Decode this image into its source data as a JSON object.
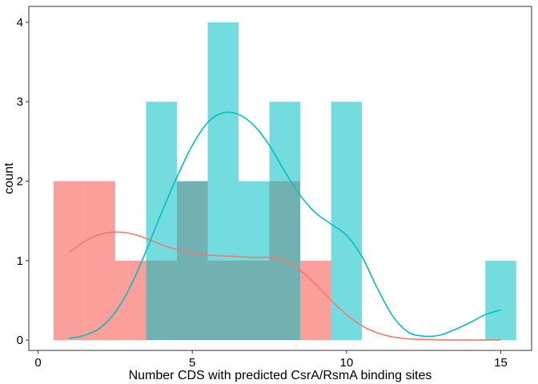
{
  "chart_data": {
    "type": "histogram",
    "xlabel": "Number CDS with predicted CsrA/RsmA binding sites",
    "ylabel": "count",
    "xlim": [
      -0.3,
      16.0
    ],
    "ylim": [
      -0.13,
      4.2
    ],
    "x_ticks": [
      0,
      5,
      10,
      15
    ],
    "y_ticks": [
      0,
      1,
      2,
      3,
      4
    ],
    "bin_width": 1,
    "grid": false,
    "legend": "none",
    "series": [
      {
        "color": "#F8766D",
        "fill_opacity": 0.7,
        "bins": [
          {
            "x": 1,
            "count": 2
          },
          {
            "x": 2,
            "count": 2
          },
          {
            "x": 3,
            "count": 1
          },
          {
            "x": 4,
            "count": 1
          },
          {
            "x": 5,
            "count": 2
          },
          {
            "x": 6,
            "count": 1
          },
          {
            "x": 7,
            "count": 1
          },
          {
            "x": 8,
            "count": 2
          },
          {
            "x": 9,
            "count": 1
          },
          {
            "x": 10,
            "count": 0
          },
          {
            "x": 11,
            "count": 0
          },
          {
            "x": 12,
            "count": 0
          },
          {
            "x": 13,
            "count": 0
          },
          {
            "x": 14,
            "count": 0
          },
          {
            "x": 15,
            "count": 0
          }
        ],
        "density_curve": [
          [
            1.0,
            1.1
          ],
          [
            1.5,
            1.24
          ],
          [
            2.0,
            1.33
          ],
          [
            2.5,
            1.36
          ],
          [
            3.0,
            1.34
          ],
          [
            3.5,
            1.28
          ],
          [
            4.0,
            1.2
          ],
          [
            4.5,
            1.14
          ],
          [
            5.0,
            1.1
          ],
          [
            5.5,
            1.07
          ],
          [
            6.0,
            1.06
          ],
          [
            6.5,
            1.05
          ],
          [
            7.0,
            1.04
          ],
          [
            7.5,
            1.04
          ],
          [
            8.0,
            1.0
          ],
          [
            8.5,
            0.88
          ],
          [
            9.0,
            0.7
          ],
          [
            9.5,
            0.5
          ],
          [
            10.0,
            0.32
          ],
          [
            10.5,
            0.18
          ],
          [
            11.0,
            0.09
          ],
          [
            11.5,
            0.04
          ],
          [
            12.0,
            0.015
          ],
          [
            13.0,
            0.003
          ],
          [
            14.0,
            0.0
          ],
          [
            15.0,
            0.0
          ]
        ]
      },
      {
        "color": "#00BFC4",
        "fill_opacity": 0.55,
        "bins": [
          {
            "x": 1,
            "count": 0
          },
          {
            "x": 2,
            "count": 0
          },
          {
            "x": 3,
            "count": 0
          },
          {
            "x": 4,
            "count": 3
          },
          {
            "x": 5,
            "count": 2
          },
          {
            "x": 6,
            "count": 4
          },
          {
            "x": 7,
            "count": 2
          },
          {
            "x": 8,
            "count": 3
          },
          {
            "x": 9,
            "count": 0
          },
          {
            "x": 10,
            "count": 3
          },
          {
            "x": 11,
            "count": 0
          },
          {
            "x": 12,
            "count": 0
          },
          {
            "x": 13,
            "count": 0
          },
          {
            "x": 14,
            "count": 0
          },
          {
            "x": 15,
            "count": 1
          }
        ],
        "density_curve": [
          [
            1.0,
            0.02
          ],
          [
            1.5,
            0.06
          ],
          [
            2.0,
            0.15
          ],
          [
            2.5,
            0.35
          ],
          [
            3.0,
            0.68
          ],
          [
            3.5,
            1.12
          ],
          [
            4.0,
            1.6
          ],
          [
            4.5,
            2.05
          ],
          [
            5.0,
            2.45
          ],
          [
            5.5,
            2.74
          ],
          [
            6.0,
            2.86
          ],
          [
            6.5,
            2.84
          ],
          [
            7.0,
            2.7
          ],
          [
            7.5,
            2.45
          ],
          [
            8.0,
            2.12
          ],
          [
            8.5,
            1.82
          ],
          [
            9.0,
            1.6
          ],
          [
            9.5,
            1.46
          ],
          [
            10.0,
            1.32
          ],
          [
            10.5,
            1.05
          ],
          [
            11.0,
            0.65
          ],
          [
            11.5,
            0.3
          ],
          [
            12.0,
            0.1
          ],
          [
            12.5,
            0.05
          ],
          [
            13.0,
            0.06
          ],
          [
            13.5,
            0.13
          ],
          [
            14.0,
            0.22
          ],
          [
            14.5,
            0.32
          ],
          [
            15.0,
            0.38
          ]
        ]
      }
    ]
  }
}
